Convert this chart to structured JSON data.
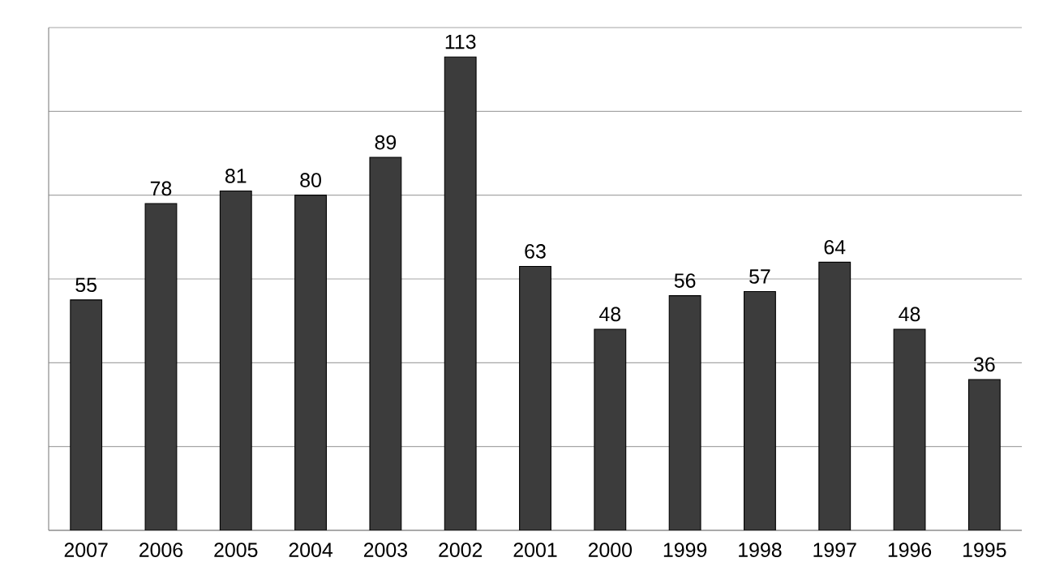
{
  "chart_data": {
    "type": "bar",
    "categories": [
      "2007",
      "2006",
      "2005",
      "2004",
      "2003",
      "2002",
      "2001",
      "2000",
      "1999",
      "1998",
      "1997",
      "1996",
      "1995"
    ],
    "values": [
      55,
      78,
      81,
      80,
      89,
      113,
      63,
      48,
      56,
      57,
      64,
      48,
      36
    ],
    "color": "#3c3c3c",
    "data_labels": true,
    "grid": "y",
    "tick_labels": "x",
    "ylim": [
      0,
      120
    ],
    "yticks": [
      {
        "value": 0,
        "label": null
      },
      {
        "value": 20,
        "label": null
      },
      {
        "value": 40,
        "label": null
      },
      {
        "value": 60,
        "label": null
      },
      {
        "value": 80,
        "label": null
      },
      {
        "value": 100,
        "label": null
      },
      {
        "value": 120,
        "label": null
      }
    ]
  }
}
